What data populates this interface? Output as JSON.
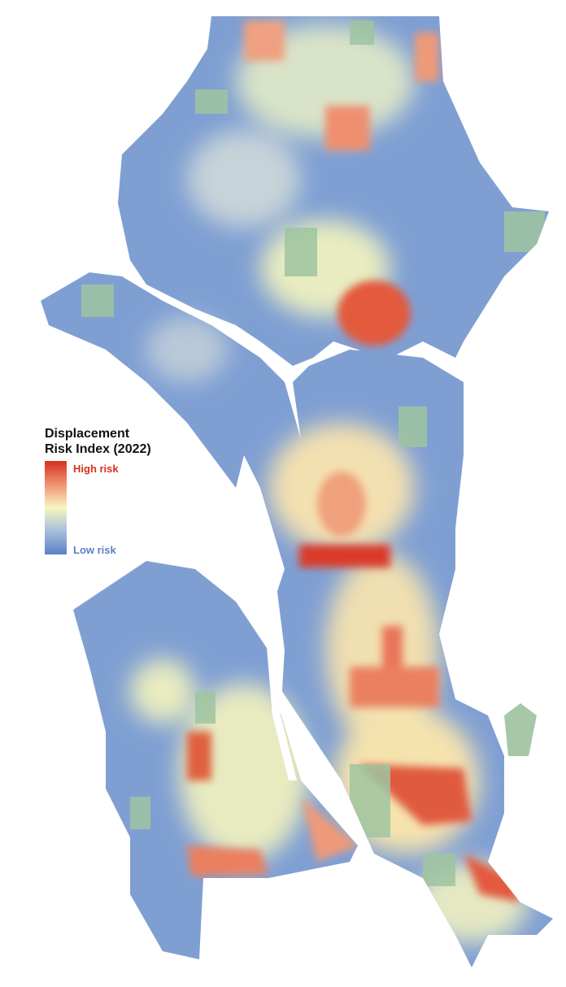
{
  "legend": {
    "title_lines": [
      "Displacement",
      "Risk Index (2022)"
    ],
    "high_label": "High risk",
    "low_label": "Low risk"
  }
}
